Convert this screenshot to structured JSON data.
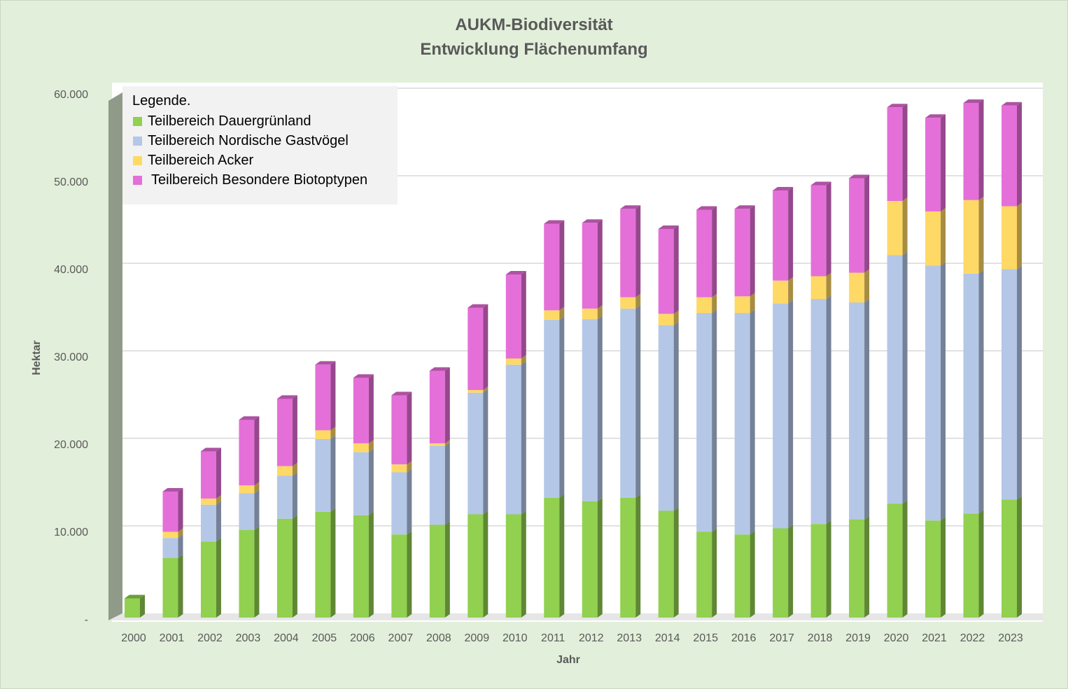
{
  "chart_data": {
    "type": "bar",
    "stacked": true,
    "title": "AUKM-Biodiversität",
    "subtitle": "Entwicklung Flächenumfang",
    "xlabel": "Jahr",
    "ylabel": "Hektar",
    "ylim": [
      0,
      60000
    ],
    "yticks": [
      0,
      10000,
      20000,
      30000,
      40000,
      50000,
      60000
    ],
    "ytick_labels": [
      "-",
      "10.000",
      "20.000",
      "30.000",
      "40.000",
      "50.000",
      "60.000"
    ],
    "grid": true,
    "legend_title": "Legende.",
    "legend_position": "top-left",
    "categories": [
      "2000",
      "2001",
      "2002",
      "2003",
      "2004",
      "2005",
      "2006",
      "2007",
      "2008",
      "2009",
      "2010",
      "2011",
      "2012",
      "2013",
      "2014",
      "2015",
      "2016",
      "2017",
      "2018",
      "2019",
      "2020",
      "2021",
      "2022",
      "2023"
    ],
    "series": [
      {
        "name": "Teilbereich Dauergrünland",
        "color": "#92d050",
        "values": [
          2200,
          6800,
          8700,
          10000,
          11300,
          12100,
          11700,
          9500,
          10600,
          11800,
          11800,
          13700,
          13300,
          13700,
          12200,
          9800,
          9500,
          10200,
          10700,
          11200,
          13000,
          11100,
          11900,
          13500
        ]
      },
      {
        "name": "Teilbereich Nordische Gastvögel",
        "color": "#b4c7e7",
        "values": [
          0,
          2300,
          4200,
          4200,
          4900,
          8300,
          7200,
          7100,
          9000,
          13900,
          17100,
          20300,
          20800,
          21600,
          21200,
          25000,
          25300,
          25700,
          25700,
          24800,
          28400,
          29100,
          27400,
          26300
        ]
      },
      {
        "name": "Teilbereich Acker",
        "color": "#ffd966",
        "values": [
          0,
          700,
          700,
          900,
          1100,
          1000,
          1000,
          900,
          300,
          300,
          700,
          1100,
          1200,
          1300,
          1300,
          1800,
          1900,
          2600,
          2600,
          3400,
          6200,
          6200,
          8400,
          7200
        ]
      },
      {
        "name": "Teilbereich Besondere Biotoptypen",
        "color": "#e56fd8",
        "values": [
          0,
          4600,
          5400,
          7500,
          7700,
          7500,
          7500,
          7900,
          8300,
          9400,
          9600,
          9900,
          9800,
          10100,
          9700,
          10000,
          10000,
          10300,
          10400,
          10800,
          10700,
          10700,
          11100,
          11500
        ]
      }
    ]
  }
}
